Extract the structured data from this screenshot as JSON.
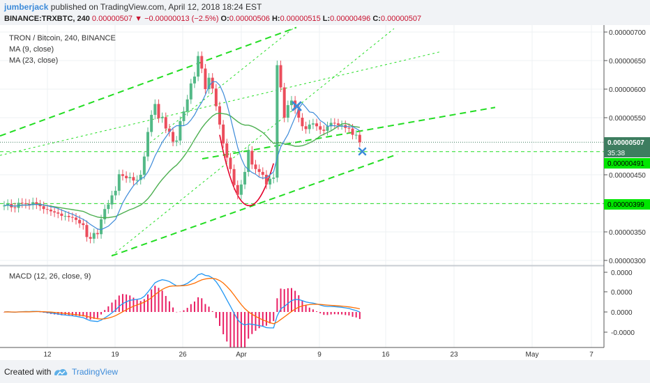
{
  "header": {
    "author": "jumberjack",
    "published_text": "published on TradingView.com, April 12, 2018 18:24 EST",
    "symbol": "BINANCE:TRXBTC, 240",
    "last": "0.00000507",
    "arrow": "▼",
    "change": "−0.00000013 (−2.5%)",
    "o_label": "O:",
    "o": "0.00000506",
    "h_label": "H:",
    "h": "0.00000515",
    "l_label": "L:",
    "l": "0.00000496",
    "c_label": "C:",
    "c": "0.00000507"
  },
  "legend": {
    "title": "TRON / Bitcoin, 240, BINANCE",
    "ma1": "MA (9, close)",
    "ma2": "MA (23, close)",
    "macd": "MACD (12, 26, close, 9)"
  },
  "footer": {
    "created": "Created with",
    "brand": "TradingView"
  },
  "colors": {
    "up": "#53b987",
    "down": "#eb4d5c",
    "ma9": "#3d8bd9",
    "ma23": "#4caf50",
    "trend": "#22dd22",
    "macd": "#2196f3",
    "signal": "#ff6d00",
    "hist": "#e91e63",
    "label_bg": "#00e600",
    "price_bg": "#3d7d5f"
  },
  "chart_data": {
    "type": "candlestick",
    "x_ticks": [
      "12",
      "19",
      "26",
      "Apr",
      "9",
      "16",
      "23",
      "May",
      "7"
    ],
    "y_ticks": [
      "0.00000700",
      "0.00000650",
      "0.00000600",
      "0.00000550",
      "0.00000450",
      "0.00000400",
      "0.00000350",
      "0.00000300"
    ],
    "y_range": [
      3e-06,
      7e-06
    ],
    "macd_ticks": [
      "0.0000",
      "0.0000",
      "0.0000",
      "-0.0000"
    ],
    "price_label": "0.00000507",
    "countdown": "35:38",
    "level_labels": [
      "0.00000491",
      "0.00000399"
    ],
    "hlines": [
      4.905e-06,
      3.995e-06
    ],
    "closes": [
      3.96e-06,
      3.99e-06,
      3.93e-06,
      3.92e-06,
      4.01e-06,
      4e-06,
      3.99e-06,
      3.97e-06,
      4.02e-06,
      3.98e-06,
      3.95e-06,
      3.9e-06,
      3.89e-06,
      3.86e-06,
      3.84e-06,
      3.82e-06,
      3.78e-06,
      3.78e-06,
      3.76e-06,
      3.75e-06,
      3.71e-06,
      3.65e-06,
      3.62e-06,
      3.41e-06,
      3.38e-06,
      3.48e-06,
      3.46e-06,
      3.72e-06,
      3.9e-06,
      3.98e-06,
      4.14e-06,
      4.22e-06,
      4.51e-06,
      4.48e-06,
      4.44e-06,
      4.46e-06,
      4.4e-06,
      4.41e-06,
      4.5e-06,
      4.82e-06,
      5.25e-06,
      5.55e-06,
      5.74e-06,
      5.49e-06,
      5.51e-06,
      5.31e-06,
      5.25e-06,
      5.08e-06,
      5.1e-06,
      5.44e-06,
      5.61e-06,
      5.82e-06,
      6.1e-06,
      6.22e-06,
      6.58e-06,
      6.36e-06,
      6e-06,
      6.2e-06,
      6.01e-06,
      5.7e-06,
      5.38e-06,
      5.05e-06,
      4.8e-06,
      4.6e-06,
      4.32e-06,
      4.15e-06,
      4.33e-06,
      4.55e-06,
      4.92e-06,
      4.68e-06,
      4.6e-06,
      4.55e-06,
      4.5e-06,
      4.33e-06,
      4.43e-06,
      4.45e-06,
      6.42e-06,
      6.03e-06,
      5.5e-06,
      5.72e-06,
      5.8e-06,
      5.65e-06,
      5.5e-06,
      5.35e-06,
      5.3e-06,
      5.38e-06,
      5.4e-06,
      5.35e-06,
      5.29e-06,
      5.27e-06,
      5.35e-06,
      5.41e-06,
      5.4e-06,
      5.37e-06,
      5.37e-06,
      5.32e-06,
      5.31e-06,
      5.2e-06,
      5.2e-06,
      5.07e-06
    ],
    "ma9": [
      3.96e-06,
      3.97e-06,
      3.96e-06,
      3.95e-06,
      3.96e-06,
      3.97e-06,
      3.97e-06,
      3.97e-06,
      3.98e-06,
      3.98e-06,
      3.98e-06,
      3.97e-06,
      3.96e-06,
      3.94e-06,
      3.93e-06,
      3.91e-06,
      3.88e-06,
      3.86e-06,
      3.83e-06,
      3.81e-06,
      3.78e-06,
      3.75e-06,
      3.72e-06,
      3.68e-06,
      3.63e-06,
      3.59e-06,
      3.55e-06,
      3.54e-06,
      3.57e-06,
      3.6e-06,
      3.66e-06,
      3.72e-06,
      3.86e-06,
      4.01e-06,
      4.12e-06,
      4.22e-06,
      4.31e-06,
      4.37e-06,
      4.43e-06,
      4.46e-06,
      4.55e-06,
      4.68e-06,
      4.83e-06,
      4.95e-06,
      5.07e-06,
      5.16e-06,
      5.25e-06,
      5.32e-06,
      5.36e-06,
      5.36e-06,
      5.36e-06,
      5.39e-06,
      5.46e-06,
      5.55e-06,
      5.67e-06,
      5.77e-06,
      5.9e-06,
      6.05e-06,
      6.13e-06,
      6.13e-06,
      6.07e-06,
      5.93e-06,
      5.74e-06,
      5.5e-06,
      5.24e-06,
      4.98e-06,
      4.79e-06,
      4.65e-06,
      4.59e-06,
      4.54e-06,
      4.51e-06,
      4.46e-06,
      4.44e-06,
      4.45e-06,
      4.5e-06,
      4.55e-06,
      4.8e-06,
      4.99e-06,
      5.1e-06,
      5.21e-06,
      5.36e-06,
      5.51e-06,
      5.66e-06,
      5.75e-06,
      5.68e-06,
      5.6e-06,
      5.59e-06,
      5.53e-06,
      5.45e-06,
      5.41e-06,
      5.35e-06,
      5.36e-06,
      5.36e-06,
      5.35e-06,
      5.35e-06,
      5.35e-06,
      5.34e-06,
      5.34e-06,
      5.31e-06,
      5.27e-06
    ],
    "ma23": [
      3.96e-06,
      3.97e-06,
      3.96e-06,
      3.95e-06,
      3.96e-06,
      3.97e-06,
      3.97e-06,
      3.97e-06,
      3.98e-06,
      3.98e-06,
      3.98e-06,
      3.97e-06,
      3.96e-06,
      3.95e-06,
      3.94e-06,
      3.93e-06,
      3.92e-06,
      3.91e-06,
      3.9e-06,
      3.89e-06,
      3.88e-06,
      3.87e-06,
      3.86e-06,
      3.83e-06,
      3.8e-06,
      3.78e-06,
      3.76e-06,
      3.75e-06,
      3.75e-06,
      3.75e-06,
      3.76e-06,
      3.77e-06,
      3.8e-06,
      3.83e-06,
      3.86e-06,
      3.89e-06,
      3.91e-06,
      3.94e-06,
      3.97e-06,
      4.02e-06,
      4.08e-06,
      4.16e-06,
      4.25e-06,
      4.34e-06,
      4.42e-06,
      4.49e-06,
      4.56e-06,
      4.62e-06,
      4.67e-06,
      4.74e-06,
      4.82e-06,
      4.91e-06,
      5.01e-06,
      5.12e-06,
      5.22e-06,
      5.32e-06,
      5.4e-06,
      5.47e-06,
      5.53e-06,
      5.57e-06,
      5.58e-06,
      5.57e-06,
      5.56e-06,
      5.53e-06,
      5.48e-06,
      5.43e-06,
      5.39e-06,
      5.37e-06,
      5.37e-06,
      5.35e-06,
      5.32e-06,
      5.28e-06,
      5.24e-06,
      5.18e-06,
      5.11e-06,
      5.05e-06,
      5.06e-06,
      5.06e-06,
      5.04e-06,
      5.03e-06,
      5.02e-06,
      5e-06,
      5e-06,
      5.01e-06,
      5.03e-06,
      5.06e-06,
      5.09e-06,
      5.13e-06,
      5.18e-06,
      5.21e-06,
      5.24e-06,
      5.27e-06,
      5.31e-06,
      5.35e-06,
      5.39e-06,
      5.4e-06,
      5.38e-06,
      5.35e-06,
      5.34e-06,
      5.33e-06
    ]
  }
}
